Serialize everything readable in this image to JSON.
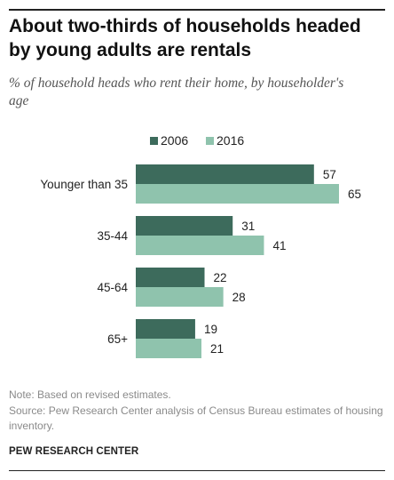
{
  "header": {
    "title": "About two-thirds of households headed by young adults are rentals",
    "subtitle": "% of household heads who rent their home, by householder's age"
  },
  "footer": {
    "note": "Note: Based on revised estimates.",
    "source": "Source: Pew Research Center analysis of Census Bureau estimates of housing inventory.",
    "brand": "PEW RESEARCH CENTER"
  },
  "colors": {
    "series_2006": "#3d6b5c",
    "series_2016": "#8fc3ad",
    "text": "#222222"
  },
  "chart_data": {
    "type": "bar",
    "orientation": "horizontal",
    "title": "About two-thirds of households headed by young adults are rentals",
    "subtitle": "% of household heads who rent their home, by householder's age",
    "xlabel": "",
    "ylabel": "",
    "categories": [
      "Younger than 35",
      "35-44",
      "45-64",
      "65+"
    ],
    "series": [
      {
        "name": "2006",
        "values": [
          57,
          31,
          22,
          19
        ],
        "color": "#3d6b5c"
      },
      {
        "name": "2016",
        "values": [
          65,
          41,
          28,
          21
        ],
        "color": "#8fc3ad"
      }
    ],
    "xlim": [
      0,
      65
    ],
    "grid": false,
    "legend": "top",
    "data_labels": true
  }
}
